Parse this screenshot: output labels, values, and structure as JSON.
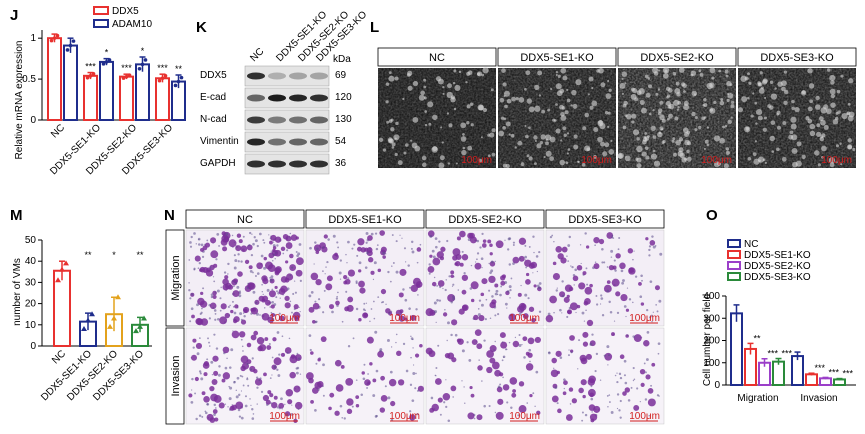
{
  "colors": {
    "ddx5": "#e8312f",
    "adam10": "#1f2d8c",
    "nc": "#1f2d8c",
    "se1": "#e8312f",
    "se2": "#9b3fc9",
    "se3": "#2a8a3a",
    "m_bar": "#e8312f"
  },
  "panels": {
    "J": "J",
    "K": "K",
    "L": "L",
    "M": "M",
    "N": "N",
    "O": "O"
  },
  "K": {
    "lanes": [
      "NC",
      "DDX5-SE1-KO",
      "DDX5-SE2-KO",
      "DDX5-SE3-KO"
    ],
    "kda_header": "kDa",
    "rows": [
      {
        "protein": "DDX5",
        "kda": "69"
      },
      {
        "protein": "E-cad",
        "kda": "120"
      },
      {
        "protein": "N-cad",
        "kda": "130"
      },
      {
        "protein": "Vimentin",
        "kda": "54"
      },
      {
        "protein": "GAPDH",
        "kda": "36"
      }
    ]
  },
  "L": {
    "headers": [
      "NC",
      "DDX5-SE1-KO",
      "DDX5-SE2-KO",
      "DDX5-SE3-KO"
    ],
    "scale": "100μm"
  },
  "N": {
    "headers": [
      "NC",
      "DDX5-SE1-KO",
      "DDX5-SE2-KO",
      "DDX5-SE3-KO"
    ],
    "rows": [
      "Migration",
      "Invasion"
    ],
    "scale": "100μm"
  },
  "chart_data": [
    {
      "panel": "J",
      "type": "bar",
      "ylabel": "Relative mRNA expression",
      "ylim": [
        0,
        1.1
      ],
      "yticks": [
        "0",
        "0.5",
        "1"
      ],
      "categories": [
        "NC",
        "DDX5-SE1-KO",
        "DDX5-SE2-KO",
        "DDX5-SE3-KO"
      ],
      "series": [
        {
          "name": "DDX5",
          "values": [
            1.0,
            0.54,
            0.53,
            0.51
          ],
          "errors": [
            0.05,
            0.04,
            0.03,
            0.05
          ]
        },
        {
          "name": "ADAM10",
          "values": [
            0.91,
            0.71,
            0.68,
            0.47
          ],
          "errors": [
            0.09,
            0.04,
            0.09,
            0.08
          ]
        }
      ],
      "annotations": [
        {
          "category": "DDX5-SE1-KO",
          "series": "DDX5",
          "text": "***"
        },
        {
          "category": "DDX5-SE1-KO",
          "series": "ADAM10",
          "text": "*"
        },
        {
          "category": "DDX5-SE2-KO",
          "series": "DDX5",
          "text": "***"
        },
        {
          "category": "DDX5-SE2-KO",
          "series": "ADAM10",
          "text": "*"
        },
        {
          "category": "DDX5-SE3-KO",
          "series": "DDX5",
          "text": "***"
        },
        {
          "category": "DDX5-SE3-KO",
          "series": "ADAM10",
          "text": "**"
        }
      ],
      "legend": "top-right"
    },
    {
      "panel": "M",
      "type": "bar",
      "ylabel": "number of VMs",
      "ylim": [
        0,
        50
      ],
      "yticks": [
        "0",
        "10",
        "20",
        "30",
        "40",
        "50"
      ],
      "categories": [
        "NC",
        "DDX5-SE1-KO",
        "DDX5-SE2-KO",
        "DDX5-SE3-KO"
      ],
      "values": [
        35.5,
        11.5,
        15,
        10
      ],
      "errors": [
        4.5,
        4,
        8,
        3.5
      ],
      "points": [
        [
          31,
          36,
          39
        ],
        [
          8,
          12,
          15
        ],
        [
          9,
          13,
          23
        ],
        [
          7,
          9,
          13
        ]
      ],
      "annotations": [
        "",
        "**",
        "*",
        "**"
      ]
    },
    {
      "panel": "O",
      "type": "bar",
      "ylabel": "Cell number per field",
      "ylim": [
        0,
        400
      ],
      "yticks": [
        "0",
        "100",
        "200",
        "300",
        "400"
      ],
      "categories": [
        "Migration",
        "Invasion"
      ],
      "series": [
        {
          "name": "NC",
          "values": [
            322,
            130
          ],
          "errors": [
            38,
            18
          ]
        },
        {
          "name": "DDX5-SE1-KO",
          "values": [
            162,
            48
          ],
          "errors": [
            25,
            5
          ]
        },
        {
          "name": "DDX5-SE2-KO",
          "values": [
            100,
            30
          ],
          "errors": [
            18,
            4
          ]
        },
        {
          "name": "DDX5-SE3-KO",
          "values": [
            105,
            25
          ],
          "errors": [
            14,
            4
          ]
        }
      ],
      "annotations": [
        [
          "",
          "**",
          "***",
          "***"
        ],
        [
          "",
          "***",
          "***",
          "***"
        ]
      ],
      "legend": "top-left"
    }
  ]
}
